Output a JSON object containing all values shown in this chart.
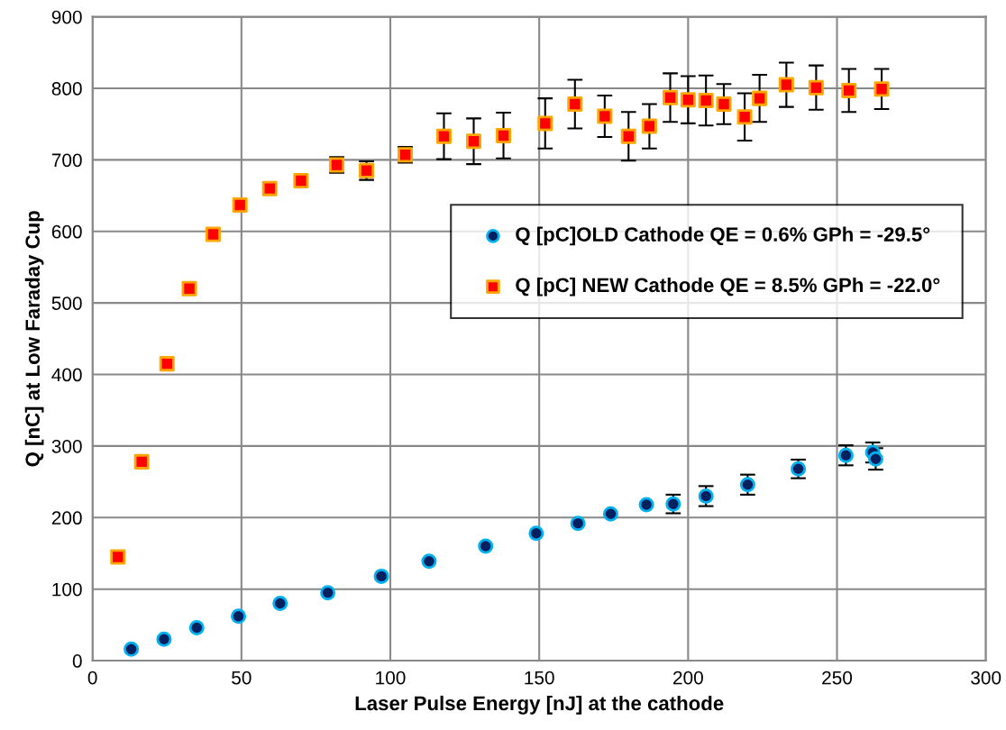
{
  "chart_data": {
    "type": "scatter",
    "xlabel": "Laser Pulse Energy [nJ] at the cathode",
    "ylabel": "Q [nC] at Low Faraday Cup",
    "xlim": [
      0,
      300
    ],
    "xticks": [
      0,
      50,
      100,
      150,
      200,
      250,
      300
    ],
    "ylim": [
      0,
      900
    ],
    "yticks": [
      0,
      100,
      200,
      300,
      400,
      500,
      600,
      700,
      800,
      900
    ],
    "grid": true,
    "legend": "center right",
    "series": [
      {
        "name": "Q [pC]OLD Cathode QE = 0.6% GPh = -29.5°",
        "color": "#002060",
        "marker": "circle",
        "x": [
          13,
          24,
          35,
          49,
          63,
          79,
          97,
          113,
          132,
          149,
          163,
          174,
          186,
          195,
          206,
          220,
          237,
          253,
          262,
          263
        ],
        "values": [
          16,
          30,
          46,
          62,
          80,
          95,
          118,
          139,
          160,
          178,
          192,
          205,
          218,
          219,
          230,
          246,
          268,
          287,
          291,
          282
        ],
        "errors": [
          null,
          null,
          null,
          null,
          null,
          null,
          null,
          null,
          null,
          null,
          null,
          null,
          null,
          13,
          14,
          14,
          13,
          14,
          14,
          15
        ]
      },
      {
        "name": "Q [pC] NEW Cathode QE = 8.5% GPh = -22.0°",
        "color": "#ff0000",
        "marker": "square",
        "x": [
          8.5,
          16.5,
          25,
          32.5,
          40.5,
          49.5,
          59.5,
          70,
          82,
          92,
          105,
          118,
          128,
          138,
          152,
          162,
          172,
          180,
          187,
          194,
          200,
          206,
          212,
          219,
          224,
          233,
          243,
          254,
          265
        ],
        "values": [
          145,
          278,
          415,
          520,
          596,
          637,
          660,
          671,
          693,
          685,
          707,
          733,
          726,
          734,
          751,
          778,
          761,
          733,
          747,
          787,
          784,
          783,
          778,
          760,
          786,
          805,
          801,
          797,
          799
        ],
        "errors": [
          null,
          null,
          null,
          null,
          null,
          null,
          null,
          null,
          11,
          13,
          11,
          32,
          32,
          32,
          35,
          34,
          29,
          34,
          31,
          34,
          33,
          35,
          28,
          33,
          33,
          31,
          31,
          30,
          28
        ]
      }
    ]
  }
}
